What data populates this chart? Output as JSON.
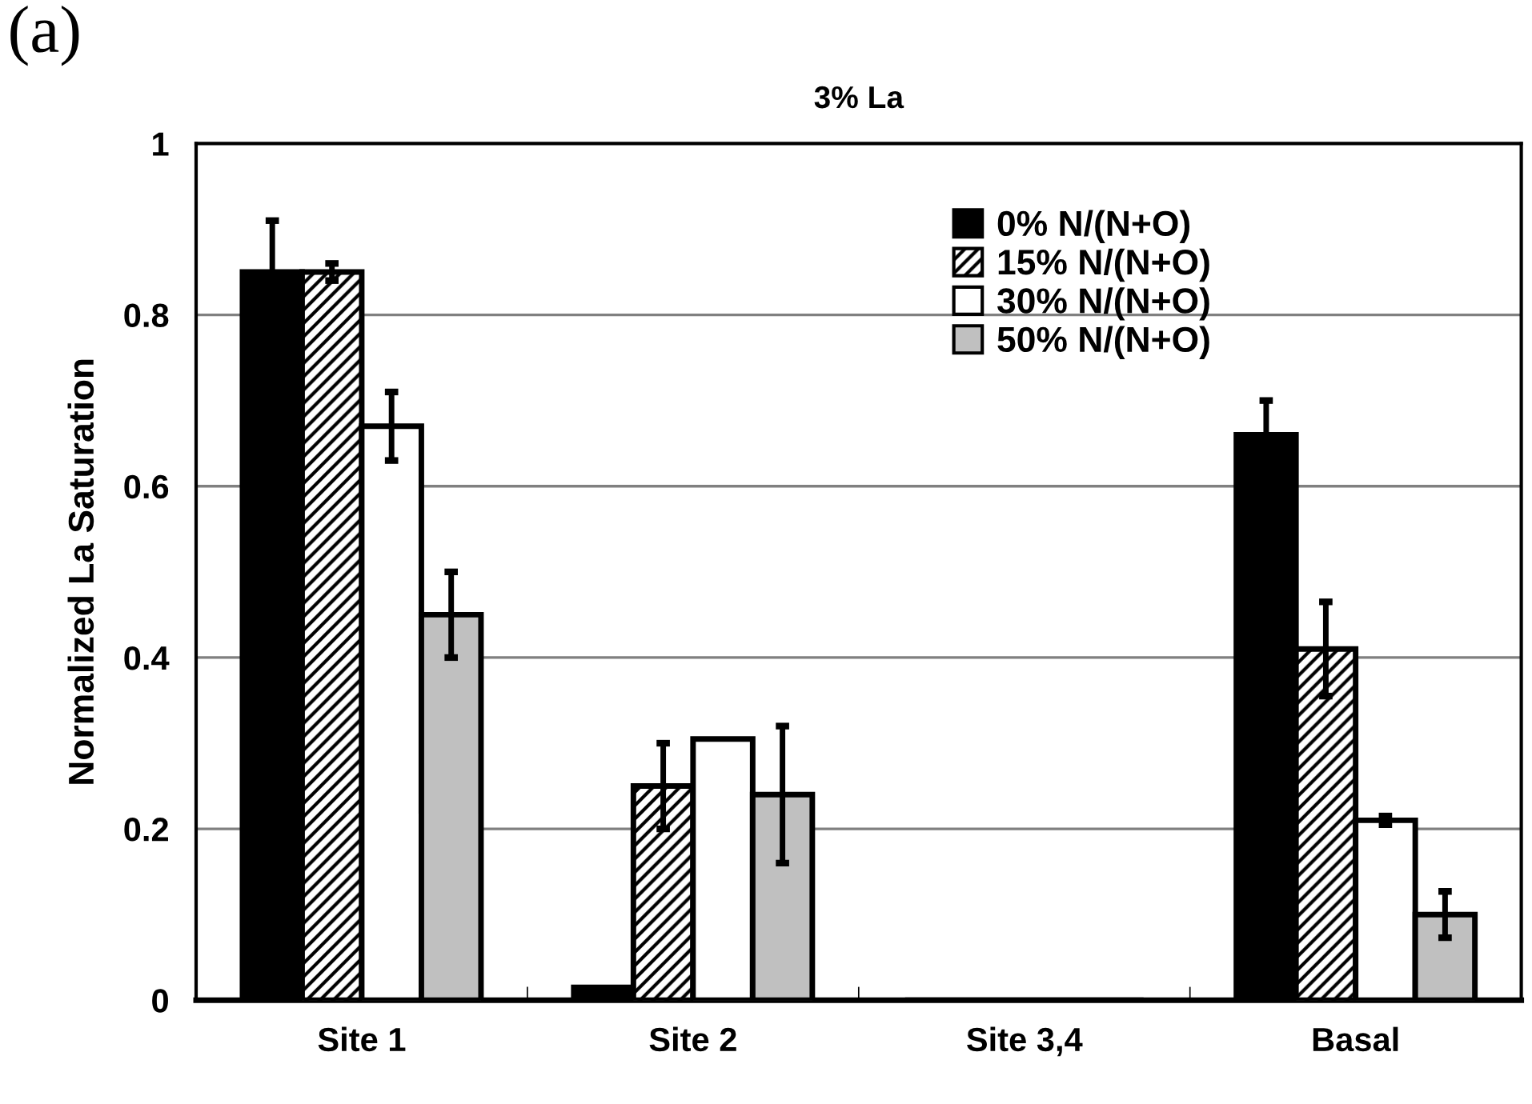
{
  "chart_data": {
    "type": "bar",
    "title": "3% La",
    "ylabel": "Normalized La Saturation",
    "annotations": [
      "(a)"
    ],
    "categories": [
      "Site 1",
      "Site 2",
      "Site 3,4",
      "Basal"
    ],
    "series": [
      {
        "name": "0% N/(N+O)",
        "color": "#000000",
        "values": [
          0.85,
          0.015,
          0,
          0.66
        ],
        "errors": [
          0.06,
          null,
          null,
          0.04
        ]
      },
      {
        "name": "15% N/(N+O)",
        "color": "#000000",
        "values": [
          0.85,
          0.25,
          0,
          0.41
        ],
        "errors": [
          0.01,
          0.05,
          null,
          0.055
        ]
      },
      {
        "name": "30% N/(N+O)",
        "color": "#ffffff",
        "values": [
          0.67,
          0.305,
          0,
          0.21
        ],
        "errors": [
          0.04,
          null,
          null,
          0.005
        ]
      },
      {
        "name": "50% N/(N+O)",
        "color": "#c0c0c0",
        "values": [
          0.45,
          0.24,
          0,
          0.1
        ],
        "errors": [
          0.05,
          0.08,
          null,
          0.027
        ]
      }
    ],
    "ylim": [
      0,
      1
    ],
    "yticks": [
      0,
      {
        "value": 0.2,
        "label": "0.2"
      },
      {
        "value": 0.4,
        "label": "0.4"
      },
      {
        "value": 0.6,
        "label": "0.6"
      },
      {
        "value": 0.8,
        "label": "0.8"
      },
      1
    ],
    "grid": "y",
    "legend": "top right"
  }
}
